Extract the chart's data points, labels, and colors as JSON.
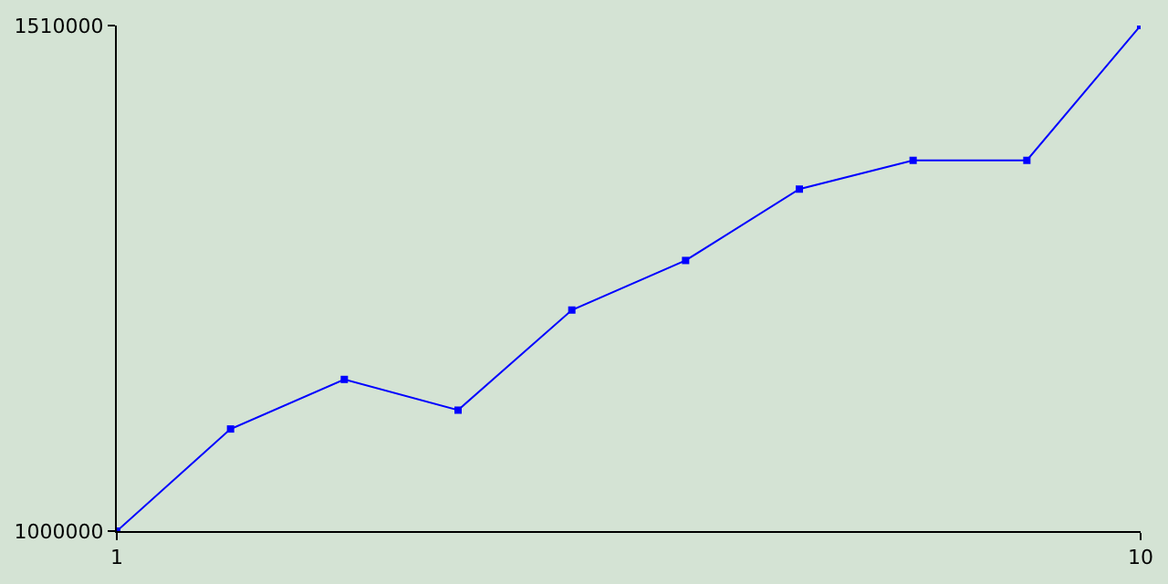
{
  "chart_data": {
    "type": "line",
    "x": [
      1,
      2,
      3,
      4,
      5,
      6,
      7,
      8,
      9,
      10
    ],
    "series": [
      {
        "color": "#0000ff",
        "values": [
          1000000,
          1103000,
          1153000,
          1122000,
          1223000,
          1273000,
          1345000,
          1374000,
          1374000,
          1510000
        ]
      }
    ],
    "xlim": [
      1,
      10
    ],
    "xticks": [
      1,
      10
    ],
    "ylim": [
      1000000,
      1510000
    ],
    "yticks": [
      1000000,
      1510000
    ],
    "legend": false,
    "marker": "square",
    "line_style": "solid"
  }
}
